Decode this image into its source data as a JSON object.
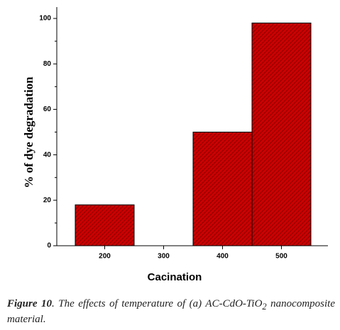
{
  "chart_data": {
    "type": "bar",
    "categories": [
      "200",
      "300",
      "400",
      "500"
    ],
    "values": [
      18,
      0,
      50,
      98
    ],
    "color": "#cc0000",
    "ylim": [
      0,
      105
    ],
    "yticks": [
      0,
      20,
      40,
      60,
      80,
      100
    ],
    "y_label": "% of dye degradation",
    "x_label": "Cacination"
  },
  "caption": {
    "label": "Figure 10",
    "text": ". The effects of temperature of (a) AC-CdO-TiO",
    "subscript": "2",
    "text_end": " nanocomposite material."
  }
}
